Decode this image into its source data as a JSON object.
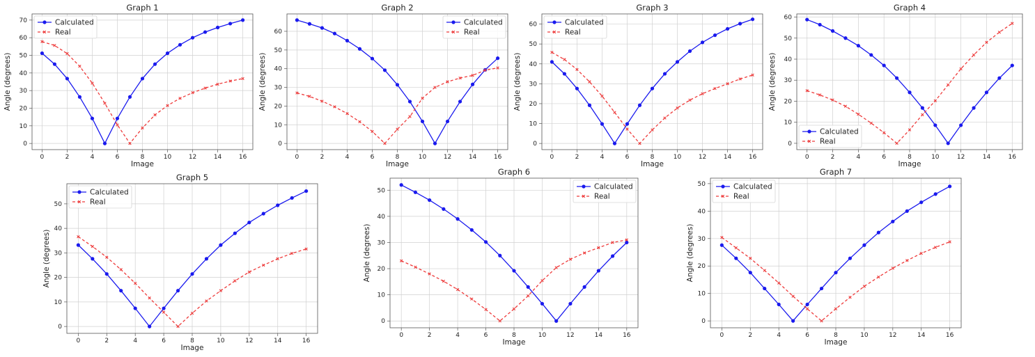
{
  "legend_labels": [
    "Calculated",
    "Real"
  ],
  "colors": {
    "calculated": "#1a1aee",
    "real": "#ee3b3b"
  },
  "chart_data": [
    {
      "type": "line",
      "title": "Graph 1",
      "xlabel": "Image",
      "ylabel": "Angle (degrees)",
      "x": [
        0,
        1,
        2,
        3,
        4,
        5,
        6,
        7,
        8,
        9,
        10,
        11,
        12,
        13,
        14,
        15,
        16
      ],
      "xlim": [
        -0.8,
        16.8
      ],
      "ylim": [
        -3.5,
        73.5
      ],
      "xticks": [
        0,
        2,
        4,
        6,
        8,
        10,
        12,
        14,
        16
      ],
      "yticks": [
        0,
        10,
        20,
        30,
        40,
        50,
        60,
        70
      ],
      "legend_position": "top-left",
      "series": [
        {
          "name": "Calculated",
          "values": [
            51.2,
            45.0,
            36.8,
            26.4,
            14.2,
            0,
            14.2,
            26.4,
            36.8,
            45.0,
            51.2,
            56.0,
            60.0,
            63.2,
            65.8,
            68.0,
            70.0
          ]
        },
        {
          "name": "Real",
          "values": [
            57.8,
            55.6,
            51.0,
            43.8,
            34.2,
            22.8,
            10.5,
            0,
            8.8,
            16.2,
            21.5,
            25.6,
            28.8,
            31.4,
            33.6,
            35.4,
            36.8
          ]
        }
      ]
    },
    {
      "type": "line",
      "title": "Graph 2",
      "xlabel": "Image",
      "ylabel": "Angle (degrees)",
      "x": [
        0,
        1,
        2,
        3,
        4,
        5,
        6,
        7,
        8,
        9,
        10,
        11,
        12,
        13,
        14,
        15,
        16
      ],
      "xlim": [
        -0.8,
        16.8
      ],
      "ylim": [
        -3.3,
        69.3
      ],
      "xticks": [
        0,
        2,
        4,
        6,
        8,
        10,
        12,
        14,
        16
      ],
      "yticks": [
        0,
        10,
        20,
        30,
        40,
        50,
        60
      ],
      "legend_position": "top-right",
      "series": [
        {
          "name": "Calculated",
          "values": [
            66.0,
            64.0,
            61.8,
            58.8,
            55.0,
            50.6,
            45.4,
            39.2,
            31.4,
            22.4,
            11.8,
            0,
            11.8,
            22.4,
            31.6,
            39.4,
            45.6
          ]
        },
        {
          "name": "Real",
          "values": [
            27.0,
            25.2,
            22.6,
            19.6,
            16.0,
            11.6,
            6.4,
            0,
            7.6,
            14.4,
            24.2,
            30.0,
            33.0,
            35.0,
            36.4,
            39.2,
            40.4
          ]
        }
      ]
    },
    {
      "type": "line",
      "title": "Graph 3",
      "xlabel": "Image",
      "ylabel": "Angle (degrees)",
      "x": [
        0,
        1,
        2,
        3,
        4,
        5,
        6,
        7,
        8,
        9,
        10,
        11,
        12,
        13,
        14,
        15,
        16
      ],
      "xlim": [
        -0.8,
        16.8
      ],
      "ylim": [
        -3.1,
        65.1
      ],
      "xticks": [
        0,
        2,
        4,
        6,
        8,
        10,
        12,
        14,
        16
      ],
      "yticks": [
        0,
        10,
        20,
        30,
        40,
        50,
        60
      ],
      "legend_position": "top-left",
      "series": [
        {
          "name": "Calculated",
          "values": [
            41.0,
            35.0,
            27.6,
            19.2,
            9.8,
            0,
            9.8,
            19.2,
            27.6,
            35.0,
            41.0,
            46.4,
            50.8,
            54.4,
            57.6,
            60.2,
            62.4
          ]
        },
        {
          "name": "Real",
          "values": [
            45.8,
            42.2,
            37.2,
            31.0,
            23.8,
            15.6,
            7.2,
            0,
            6.8,
            12.8,
            17.8,
            21.8,
            25.0,
            27.6,
            30.0,
            32.4,
            34.4
          ]
        }
      ]
    },
    {
      "type": "line",
      "title": "Graph 4",
      "xlabel": "Image",
      "ylabel": "Angle (degrees)",
      "x": [
        0,
        1,
        2,
        3,
        4,
        5,
        6,
        7,
        8,
        9,
        10,
        11,
        12,
        13,
        14,
        15,
        16
      ],
      "xlim": [
        -0.8,
        16.8
      ],
      "ylim": [
        -3.0,
        61.5
      ],
      "xticks": [
        0,
        2,
        4,
        6,
        8,
        10,
        12,
        14,
        16
      ],
      "yticks": [
        0,
        10,
        20,
        30,
        40,
        50,
        60
      ],
      "legend_position": "bottom-left",
      "series": [
        {
          "name": "Calculated",
          "values": [
            58.8,
            56.4,
            53.4,
            50.0,
            46.4,
            42.0,
            37.0,
            31.0,
            24.2,
            16.8,
            8.6,
            0,
            8.6,
            16.8,
            24.2,
            31.0,
            37.0
          ]
        },
        {
          "name": "Real",
          "values": [
            25.0,
            23.0,
            20.6,
            17.6,
            13.8,
            9.6,
            5.0,
            0,
            6.4,
            13.6,
            20.2,
            27.8,
            35.4,
            42.0,
            48.0,
            52.8,
            57.0
          ]
        }
      ]
    },
    {
      "type": "line",
      "title": "Graph 5",
      "xlabel": "Image",
      "ylabel": "Angle (degrees)",
      "x": [
        0,
        1,
        2,
        3,
        4,
        5,
        6,
        7,
        8,
        9,
        10,
        11,
        12,
        13,
        14,
        15,
        16
      ],
      "xlim": [
        -0.8,
        16.8
      ],
      "ylim": [
        -2.8,
        58.2
      ],
      "xticks": [
        0,
        2,
        4,
        6,
        8,
        10,
        12,
        14,
        16
      ],
      "yticks": [
        0,
        10,
        20,
        30,
        40,
        50
      ],
      "legend_position": "top-left",
      "series": [
        {
          "name": "Calculated",
          "values": [
            33.2,
            27.6,
            21.4,
            14.6,
            7.4,
            0,
            7.4,
            14.6,
            21.4,
            27.6,
            33.2,
            38.0,
            42.4,
            46.0,
            49.4,
            52.4,
            55.2
          ]
        },
        {
          "name": "Real",
          "values": [
            36.6,
            32.6,
            28.2,
            23.2,
            17.6,
            11.6,
            5.8,
            0,
            5.4,
            10.4,
            14.6,
            18.6,
            22.2,
            25.0,
            27.6,
            29.8,
            31.6
          ]
        }
      ]
    },
    {
      "type": "line",
      "title": "Graph 6",
      "xlabel": "Image",
      "ylabel": "Angle (degrees)",
      "x": [
        0,
        1,
        2,
        3,
        4,
        5,
        6,
        7,
        8,
        9,
        10,
        11,
        12,
        13,
        14,
        15,
        16
      ],
      "xlim": [
        -0.8,
        16.8
      ],
      "ylim": [
        -2.6,
        54.6
      ],
      "xticks": [
        0,
        2,
        4,
        6,
        8,
        10,
        12,
        14,
        16
      ],
      "yticks": [
        0,
        10,
        20,
        30,
        40,
        50
      ],
      "legend_position": "top-right",
      "series": [
        {
          "name": "Calculated",
          "values": [
            52.0,
            49.2,
            46.2,
            42.8,
            39.0,
            34.8,
            30.2,
            25.0,
            19.2,
            13.0,
            6.6,
            0,
            6.6,
            13.0,
            19.2,
            24.8,
            30.0
          ]
        },
        {
          "name": "Real",
          "values": [
            23.0,
            20.6,
            18.0,
            15.2,
            12.0,
            8.4,
            4.4,
            0,
            4.6,
            9.6,
            15.4,
            20.4,
            23.6,
            26.0,
            28.0,
            30.0,
            31.0
          ]
        }
      ]
    },
    {
      "type": "line",
      "title": "Graph 7",
      "xlabel": "Image",
      "ylabel": "Angle (degrees)",
      "x": [
        0,
        1,
        2,
        3,
        4,
        5,
        6,
        7,
        8,
        9,
        10,
        11,
        12,
        13,
        14,
        15,
        16
      ],
      "xlim": [
        -0.8,
        16.8
      ],
      "ylim": [
        -2.5,
        52.0
      ],
      "xticks": [
        0,
        2,
        4,
        6,
        8,
        10,
        12,
        14,
        16
      ],
      "yticks": [
        0,
        10,
        20,
        30,
        40,
        50
      ],
      "legend_position": "top-left",
      "series": [
        {
          "name": "Calculated",
          "values": [
            27.6,
            22.8,
            17.6,
            11.8,
            6.0,
            0,
            6.0,
            11.8,
            17.6,
            22.8,
            27.6,
            32.2,
            36.2,
            40.0,
            43.2,
            46.2,
            49.0
          ]
        },
        {
          "name": "Real",
          "values": [
            30.4,
            26.6,
            22.8,
            18.4,
            13.8,
            9.0,
            4.4,
            0,
            4.4,
            8.6,
            12.6,
            16.0,
            19.2,
            22.0,
            24.6,
            26.8,
            28.8
          ]
        }
      ]
    }
  ]
}
